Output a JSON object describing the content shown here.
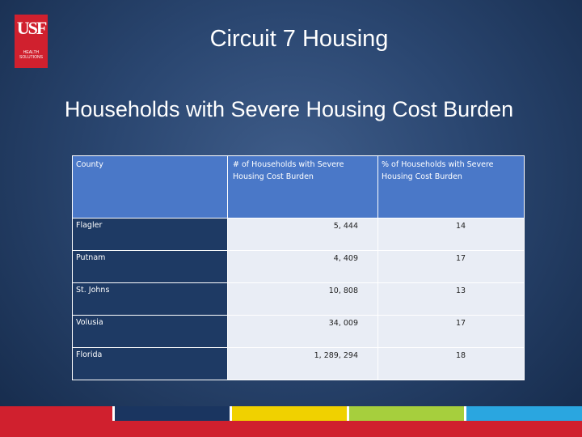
{
  "logo": {
    "mark": "USF",
    "small_text": "HEALTH SOLUTIONS"
  },
  "title": "Circuit 7 Housing",
  "subtitle": "Households with Severe Housing Cost Burden",
  "table": {
    "headers": [
      "County",
      "# of Households with Severe Housing Cost Burden",
      "% of Households with Severe Housing Cost Burden"
    ],
    "rows": [
      {
        "county": "Flagler",
        "count": "5, 444",
        "pct": "14"
      },
      {
        "county": "Putnam",
        "count": "4, 409",
        "pct": "17"
      },
      {
        "county": "St. Johns",
        "count": "10, 808",
        "pct": "13"
      },
      {
        "county": "Volusia",
        "count": "34, 009",
        "pct": "17"
      },
      {
        "county": "Florida",
        "count": "1, 289, 294",
        "pct": "18"
      }
    ]
  },
  "footer_colors": [
    "#d0202e",
    "#1a3560",
    "#f0d100",
    "#a6cf3d",
    "#2aa6e0"
  ]
}
